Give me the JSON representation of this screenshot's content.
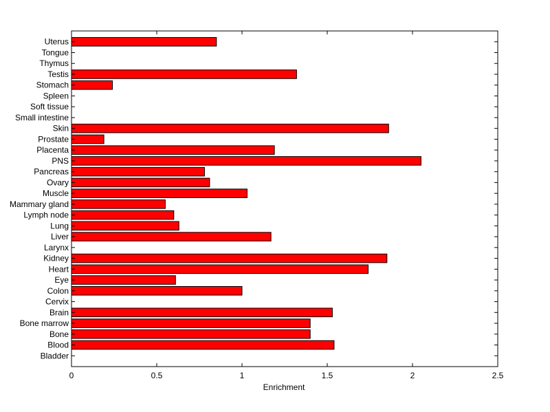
{
  "chart_data": {
    "type": "bar",
    "orientation": "horizontal",
    "title": "",
    "xlabel": "Enrichment",
    "ylabel": "",
    "xlim": [
      0,
      2.5
    ],
    "xticks": [
      "0",
      "0.5",
      "1",
      "1.5",
      "2",
      "2.5"
    ],
    "grid": false,
    "bar_color": "#ff0000",
    "categories": [
      "Uterus",
      "Tongue",
      "Thymus",
      "Testis",
      "Stomach",
      "Spleen",
      "Soft tissue",
      "Small intestine",
      "Skin",
      "Prostate",
      "Placenta",
      "PNS",
      "Pancreas",
      "Ovary",
      "Muscle",
      "Mammary gland",
      "Lymph node",
      "Lung",
      "Liver",
      "Larynx",
      "Kidney",
      "Heart",
      "Eye",
      "Colon",
      "Cervix",
      "Brain",
      "Bone marrow",
      "Bone",
      "Blood",
      "Bladder"
    ],
    "values": [
      0.85,
      0,
      0,
      1.32,
      0.24,
      0,
      0,
      0,
      1.86,
      0.19,
      1.19,
      2.05,
      0.78,
      0.81,
      1.03,
      0.55,
      0.6,
      0.63,
      1.17,
      0,
      1.85,
      1.74,
      0.61,
      1.0,
      0,
      1.53,
      1.4,
      1.4,
      1.54,
      0
    ]
  }
}
